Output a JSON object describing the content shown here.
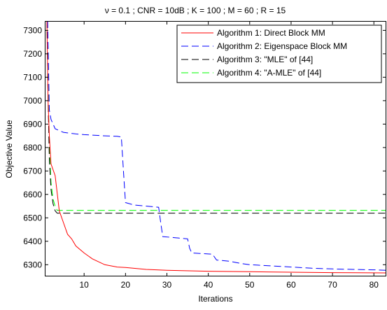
{
  "chart_data": {
    "type": "line",
    "title": "ν = 0.1 ; CNR = 10dB ; K = 100 ; M = 60 ; R = 15",
    "xlabel": "Iterations",
    "ylabel": "Objective Value",
    "xlim": [
      0.5,
      83
    ],
    "ylim": [
      6250,
      7340
    ],
    "xticks": [
      10,
      20,
      30,
      40,
      50,
      60,
      70,
      80
    ],
    "yticks": [
      6300,
      6400,
      6500,
      6600,
      6700,
      6800,
      6900,
      7000,
      7100,
      7200,
      7300
    ],
    "grid": false,
    "legend_position": "top-right",
    "series": [
      {
        "name": "Algorithm 1: Direct Block MM",
        "color": "#ff0000",
        "dash": "solid",
        "x": [
          1,
          1.3,
          1.6,
          2,
          3,
          4,
          5,
          6,
          7,
          8,
          10,
          12,
          15,
          18,
          20,
          25,
          30,
          40,
          50,
          60,
          70,
          83
        ],
        "y": [
          7340,
          7000,
          6850,
          6730,
          6680,
          6530,
          6480,
          6430,
          6410,
          6380,
          6350,
          6325,
          6300,
          6290,
          6288,
          6280,
          6276,
          6272,
          6270,
          6268,
          6266,
          6265
        ]
      },
      {
        "name": "Algorithm 2: Eigenspace Block MM",
        "color": "#0000ff",
        "dash": "dash",
        "x": [
          1.2,
          1.6,
          2,
          3,
          5,
          8,
          10,
          15,
          18,
          19,
          19.5,
          20,
          22,
          25,
          28,
          28.5,
          29,
          32,
          35,
          35.5,
          36,
          38,
          41,
          42,
          45,
          48,
          50,
          52,
          55,
          60,
          65,
          70,
          75,
          80,
          83
        ],
        "y": [
          7340,
          6960,
          6920,
          6880,
          6865,
          6858,
          6855,
          6850,
          6848,
          6845,
          6700,
          6565,
          6555,
          6550,
          6545,
          6480,
          6420,
          6415,
          6410,
          6370,
          6350,
          6348,
          6345,
          6320,
          6315,
          6305,
          6300,
          6298,
          6295,
          6290,
          6285,
          6282,
          6280,
          6278,
          6276
        ]
      },
      {
        "name": "Algorithm 3: \"MLE\" of [44]",
        "color": "#000000",
        "dash": "dash",
        "x": [
          1,
          1.3,
          1.6,
          2,
          2.5,
          3,
          3.5,
          5,
          10,
          20,
          40,
          60,
          83
        ],
        "y": [
          7340,
          7000,
          6750,
          6620,
          6560,
          6530,
          6520,
          6520,
          6520,
          6520,
          6520,
          6520,
          6520
        ]
      },
      {
        "name": "Algorithm 4: \"A-MLE\" of [44]",
        "color": "#00ff00",
        "dash": "dash",
        "x": [
          1,
          1.3,
          1.6,
          2,
          2.5,
          3,
          3.5,
          5,
          10,
          20,
          40,
          60,
          83
        ],
        "y": [
          7340,
          7050,
          6800,
          6650,
          6580,
          6550,
          6532,
          6532,
          6532,
          6532,
          6532,
          6532,
          6532
        ]
      }
    ]
  }
}
